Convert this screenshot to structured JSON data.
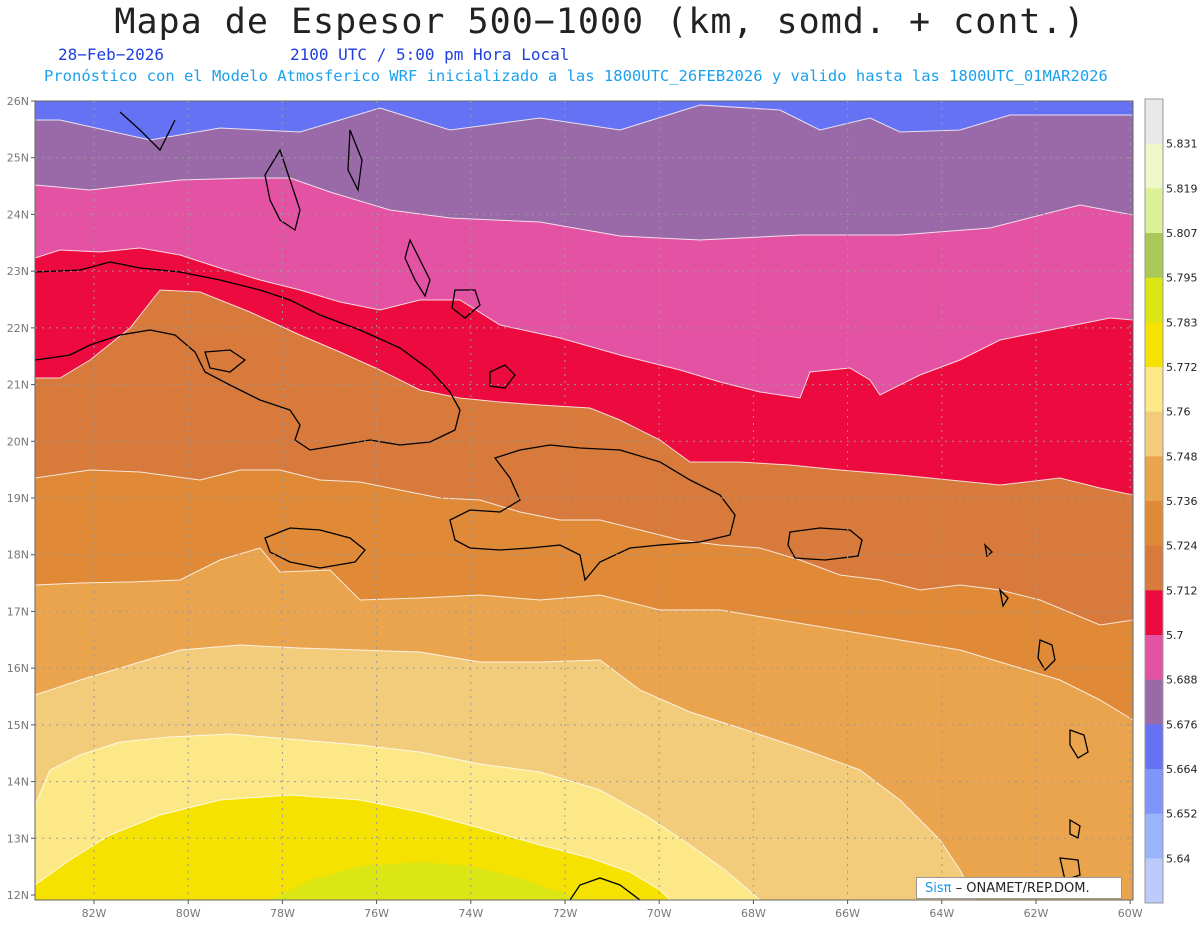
{
  "title": "Mapa de Espesor 500−1000 (km, somd. + cont.)",
  "date": "28−Feb−2026",
  "valid_time": "2100 UTC / 5:00 pm Hora Local",
  "forecast_line": "Pronóstico con el Modelo Atmosferico WRF inicializado a las 1800UTC_26FEB2026 y valido hasta las  1800UTC_01MAR2026",
  "credit": {
    "brand": "Sisπ",
    "text": " – ONAMET/REP.DOM."
  },
  "lat_labels": [
    "26N",
    "25N",
    "24N",
    "23N",
    "22N",
    "21N",
    "20N",
    "19N",
    "18N",
    "17N",
    "16N",
    "15N",
    "14N",
    "13N",
    "12N"
  ],
  "lon_labels": [
    "82W",
    "80W",
    "78W",
    "76W",
    "74W",
    "72W",
    "70W",
    "68W",
    "66W",
    "64W",
    "62W",
    "60W"
  ],
  "colorbar": {
    "labels": [
      "5.831",
      "5.819",
      "5.807",
      "5.795",
      "5.783",
      "5.772",
      "5.76",
      "5.748",
      "5.736",
      "5.724",
      "5.712",
      "5.7",
      "5.688",
      "5.676",
      "5.664",
      "5.652",
      "5.64"
    ],
    "colors": [
      "#e8e8e8",
      "#eef7c8",
      "#dcf096",
      "#a8c858",
      "#dce614",
      "#f5e200",
      "#fce886",
      "#f2cc7a",
      "#eba44e",
      "#e08a38",
      "#d87a3c",
      "#ec0a3e",
      "#e452a4",
      "#9a6aa8",
      "#6672f4",
      "#7e96fc",
      "#9ab4fc",
      "#bccafc"
    ]
  },
  "legend_name": "Espesor 500−1000 km",
  "bands": [
    {
      "level": "5.664",
      "color": "#6672f4"
    },
    {
      "level": "5.676",
      "color": "#9a6aa8"
    },
    {
      "level": "5.688",
      "color": "#e452a4"
    },
    {
      "level": "5.7",
      "color": "#ec0a3e"
    },
    {
      "level": "5.712",
      "color": "#d87a3c"
    },
    {
      "level": "5.724",
      "color": "#e08a38"
    },
    {
      "level": "5.736",
      "color": "#eba44e"
    },
    {
      "level": "5.748",
      "color": "#f2cc7a"
    },
    {
      "level": "5.76",
      "color": "#fce886"
    },
    {
      "level": "5.772",
      "color": "#f5e200"
    },
    {
      "level": "5.783",
      "color": "#dce614"
    }
  ]
}
